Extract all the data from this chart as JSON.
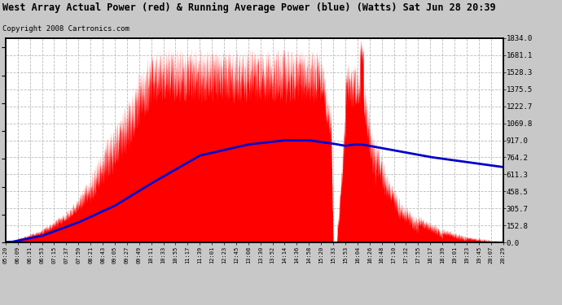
{
  "title": "West Array Actual Power (red) & Running Average Power (blue) (Watts) Sat Jun 28 20:39",
  "copyright": "Copyright 2008 Cartronics.com",
  "yticks": [
    0.0,
    152.8,
    305.7,
    458.5,
    611.3,
    764.2,
    917.0,
    1069.8,
    1222.7,
    1375.5,
    1528.3,
    1681.1,
    1834.0
  ],
  "ymax": 1834.0,
  "xtick_labels": [
    "05:20",
    "06:09",
    "06:31",
    "06:53",
    "07:15",
    "07:37",
    "07:59",
    "08:21",
    "08:43",
    "09:05",
    "09:27",
    "09:49",
    "10:11",
    "10:33",
    "10:55",
    "11:17",
    "11:39",
    "12:01",
    "12:23",
    "12:45",
    "13:08",
    "13:30",
    "13:52",
    "14:14",
    "14:36",
    "14:58",
    "15:20",
    "15:33",
    "15:53",
    "16:04",
    "16:26",
    "16:48",
    "17:10",
    "17:32",
    "17:55",
    "18:17",
    "18:39",
    "19:01",
    "19:23",
    "19:45",
    "20:07",
    "20:29"
  ],
  "bg_color": "#c8c8c8",
  "plot_bg_color": "#ffffff",
  "grid_color": "#b0b0b0",
  "red_color": "#ff0000",
  "blue_color": "#0000cc",
  "title_bg_color": "#ffffff",
  "title_color": "#000000",
  "border_color": "#000000",
  "n_ticks": 42
}
